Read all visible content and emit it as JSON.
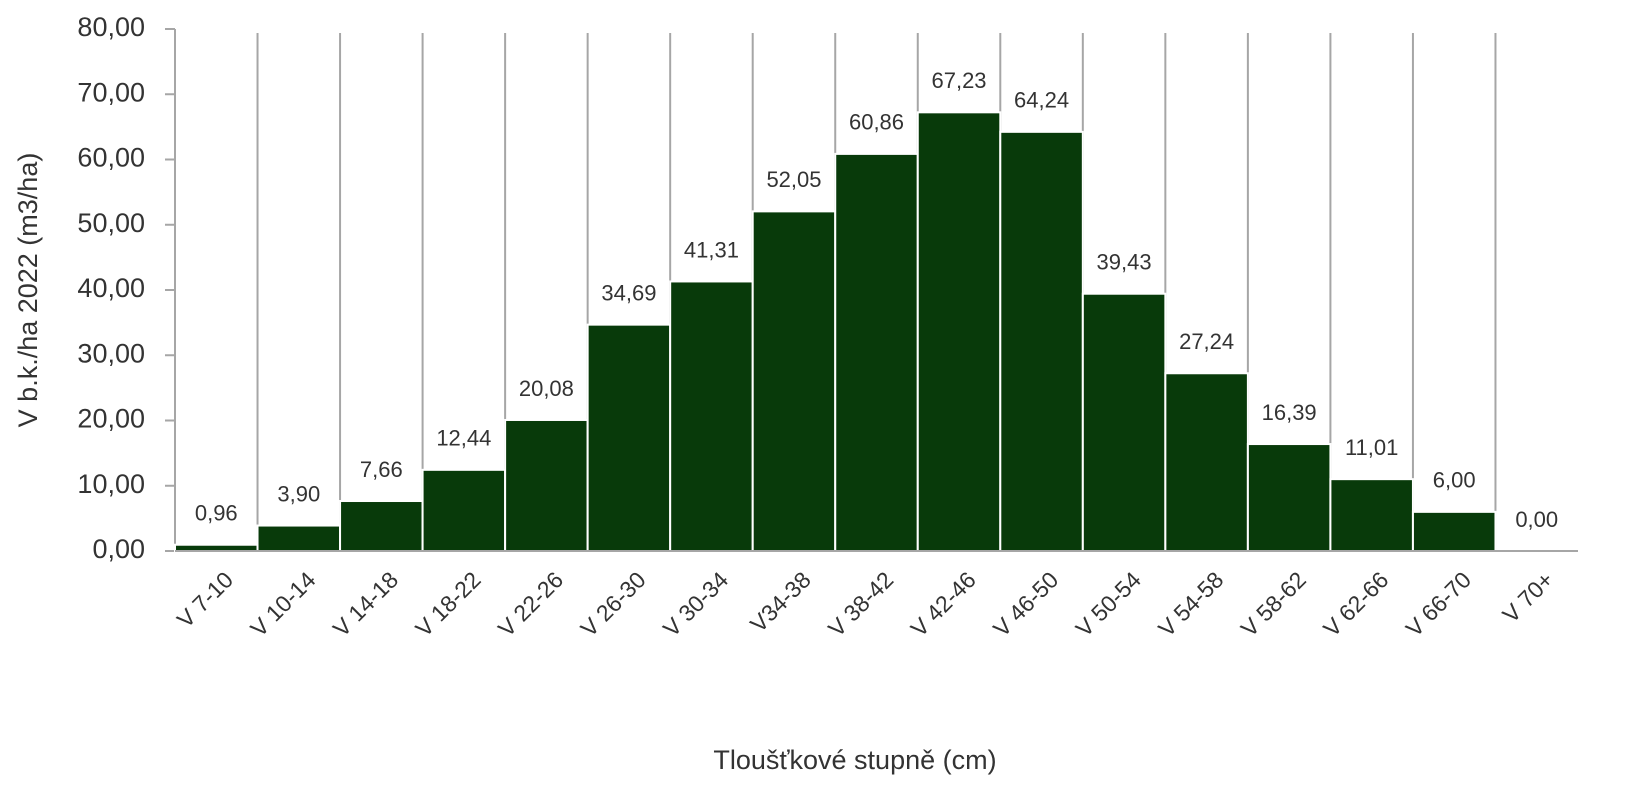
{
  "chart_data": {
    "type": "bar",
    "x_label": "Tloušťkové stupně (cm)",
    "y_label": "V b.k./ha 2022 (m3/ha)",
    "categories": [
      "V 7-10",
      "V 10-14",
      "V 14-18",
      "V 18-22",
      "V 22-26",
      "V 26-30",
      "V 30-34",
      "V34-38",
      "V 38-42",
      "V 42-46",
      "V 46-50",
      "V 50-54",
      "V 54-58",
      "V 58-62",
      "V 62-66",
      "V 66-70",
      "V 70+"
    ],
    "values": [
      0.96,
      3.9,
      7.66,
      12.44,
      20.08,
      34.69,
      41.31,
      52.05,
      60.86,
      67.23,
      64.24,
      39.43,
      27.24,
      16.39,
      11.01,
      6.0,
      0.0
    ],
    "value_labels": [
      "0,96",
      "3,90",
      "7,66",
      "12,44",
      "20,08",
      "34,69",
      "41,31",
      "52,05",
      "60,86",
      "67,23",
      "64,24",
      "39,43",
      "27,24",
      "16,39",
      "11,01",
      "6,00",
      "0,00"
    ],
    "color": "#083a0a",
    "ylim": [
      0,
      80
    ],
    "yticks": [
      {
        "value": 0,
        "label": "0,00"
      },
      {
        "value": 10,
        "label": "10,00"
      },
      {
        "value": 20,
        "label": "20,00"
      },
      {
        "value": 30,
        "label": "30,00"
      },
      {
        "value": 40,
        "label": "40,00"
      },
      {
        "value": 50,
        "label": "50,00"
      },
      {
        "value": 60,
        "label": "60,00"
      },
      {
        "value": 70,
        "label": "70,00"
      },
      {
        "value": 80,
        "label": "80,00"
      }
    ]
  }
}
